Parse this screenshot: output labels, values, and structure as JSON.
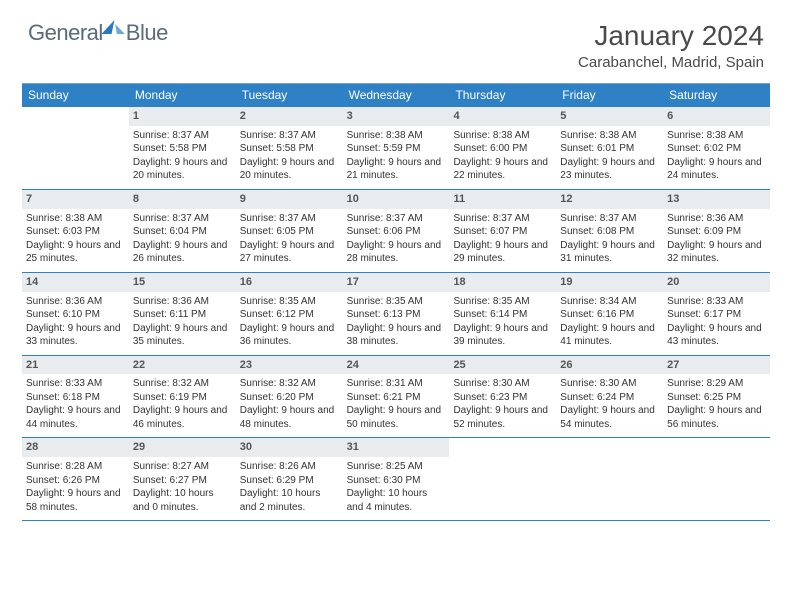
{
  "logo": {
    "word1": "General",
    "word2": "Blue"
  },
  "title": "January 2024",
  "location": "Carabanchel, Madrid, Spain",
  "weekdays": [
    "Sunday",
    "Monday",
    "Tuesday",
    "Wednesday",
    "Thursday",
    "Friday",
    "Saturday"
  ],
  "colors": {
    "header_bg": "#2f81c5",
    "daynum_bg": "#e9ecef",
    "rule": "#2f81c5"
  },
  "first_weekday_index": 1,
  "days": [
    {
      "n": 1,
      "sr": "8:37 AM",
      "ss": "5:58 PM",
      "dl": "9 hours and 20 minutes."
    },
    {
      "n": 2,
      "sr": "8:37 AM",
      "ss": "5:58 PM",
      "dl": "9 hours and 20 minutes."
    },
    {
      "n": 3,
      "sr": "8:38 AM",
      "ss": "5:59 PM",
      "dl": "9 hours and 21 minutes."
    },
    {
      "n": 4,
      "sr": "8:38 AM",
      "ss": "6:00 PM",
      "dl": "9 hours and 22 minutes."
    },
    {
      "n": 5,
      "sr": "8:38 AM",
      "ss": "6:01 PM",
      "dl": "9 hours and 23 minutes."
    },
    {
      "n": 6,
      "sr": "8:38 AM",
      "ss": "6:02 PM",
      "dl": "9 hours and 24 minutes."
    },
    {
      "n": 7,
      "sr": "8:38 AM",
      "ss": "6:03 PM",
      "dl": "9 hours and 25 minutes."
    },
    {
      "n": 8,
      "sr": "8:37 AM",
      "ss": "6:04 PM",
      "dl": "9 hours and 26 minutes."
    },
    {
      "n": 9,
      "sr": "8:37 AM",
      "ss": "6:05 PM",
      "dl": "9 hours and 27 minutes."
    },
    {
      "n": 10,
      "sr": "8:37 AM",
      "ss": "6:06 PM",
      "dl": "9 hours and 28 minutes."
    },
    {
      "n": 11,
      "sr": "8:37 AM",
      "ss": "6:07 PM",
      "dl": "9 hours and 29 minutes."
    },
    {
      "n": 12,
      "sr": "8:37 AM",
      "ss": "6:08 PM",
      "dl": "9 hours and 31 minutes."
    },
    {
      "n": 13,
      "sr": "8:36 AM",
      "ss": "6:09 PM",
      "dl": "9 hours and 32 minutes."
    },
    {
      "n": 14,
      "sr": "8:36 AM",
      "ss": "6:10 PM",
      "dl": "9 hours and 33 minutes."
    },
    {
      "n": 15,
      "sr": "8:36 AM",
      "ss": "6:11 PM",
      "dl": "9 hours and 35 minutes."
    },
    {
      "n": 16,
      "sr": "8:35 AM",
      "ss": "6:12 PM",
      "dl": "9 hours and 36 minutes."
    },
    {
      "n": 17,
      "sr": "8:35 AM",
      "ss": "6:13 PM",
      "dl": "9 hours and 38 minutes."
    },
    {
      "n": 18,
      "sr": "8:35 AM",
      "ss": "6:14 PM",
      "dl": "9 hours and 39 minutes."
    },
    {
      "n": 19,
      "sr": "8:34 AM",
      "ss": "6:16 PM",
      "dl": "9 hours and 41 minutes."
    },
    {
      "n": 20,
      "sr": "8:33 AM",
      "ss": "6:17 PM",
      "dl": "9 hours and 43 minutes."
    },
    {
      "n": 21,
      "sr": "8:33 AM",
      "ss": "6:18 PM",
      "dl": "9 hours and 44 minutes."
    },
    {
      "n": 22,
      "sr": "8:32 AM",
      "ss": "6:19 PM",
      "dl": "9 hours and 46 minutes."
    },
    {
      "n": 23,
      "sr": "8:32 AM",
      "ss": "6:20 PM",
      "dl": "9 hours and 48 minutes."
    },
    {
      "n": 24,
      "sr": "8:31 AM",
      "ss": "6:21 PM",
      "dl": "9 hours and 50 minutes."
    },
    {
      "n": 25,
      "sr": "8:30 AM",
      "ss": "6:23 PM",
      "dl": "9 hours and 52 minutes."
    },
    {
      "n": 26,
      "sr": "8:30 AM",
      "ss": "6:24 PM",
      "dl": "9 hours and 54 minutes."
    },
    {
      "n": 27,
      "sr": "8:29 AM",
      "ss": "6:25 PM",
      "dl": "9 hours and 56 minutes."
    },
    {
      "n": 28,
      "sr": "8:28 AM",
      "ss": "6:26 PM",
      "dl": "9 hours and 58 minutes."
    },
    {
      "n": 29,
      "sr": "8:27 AM",
      "ss": "6:27 PM",
      "dl": "10 hours and 0 minutes."
    },
    {
      "n": 30,
      "sr": "8:26 AM",
      "ss": "6:29 PM",
      "dl": "10 hours and 2 minutes."
    },
    {
      "n": 31,
      "sr": "8:25 AM",
      "ss": "6:30 PM",
      "dl": "10 hours and 4 minutes."
    }
  ],
  "labels": {
    "sunrise": "Sunrise:",
    "sunset": "Sunset:",
    "daylight": "Daylight:"
  }
}
